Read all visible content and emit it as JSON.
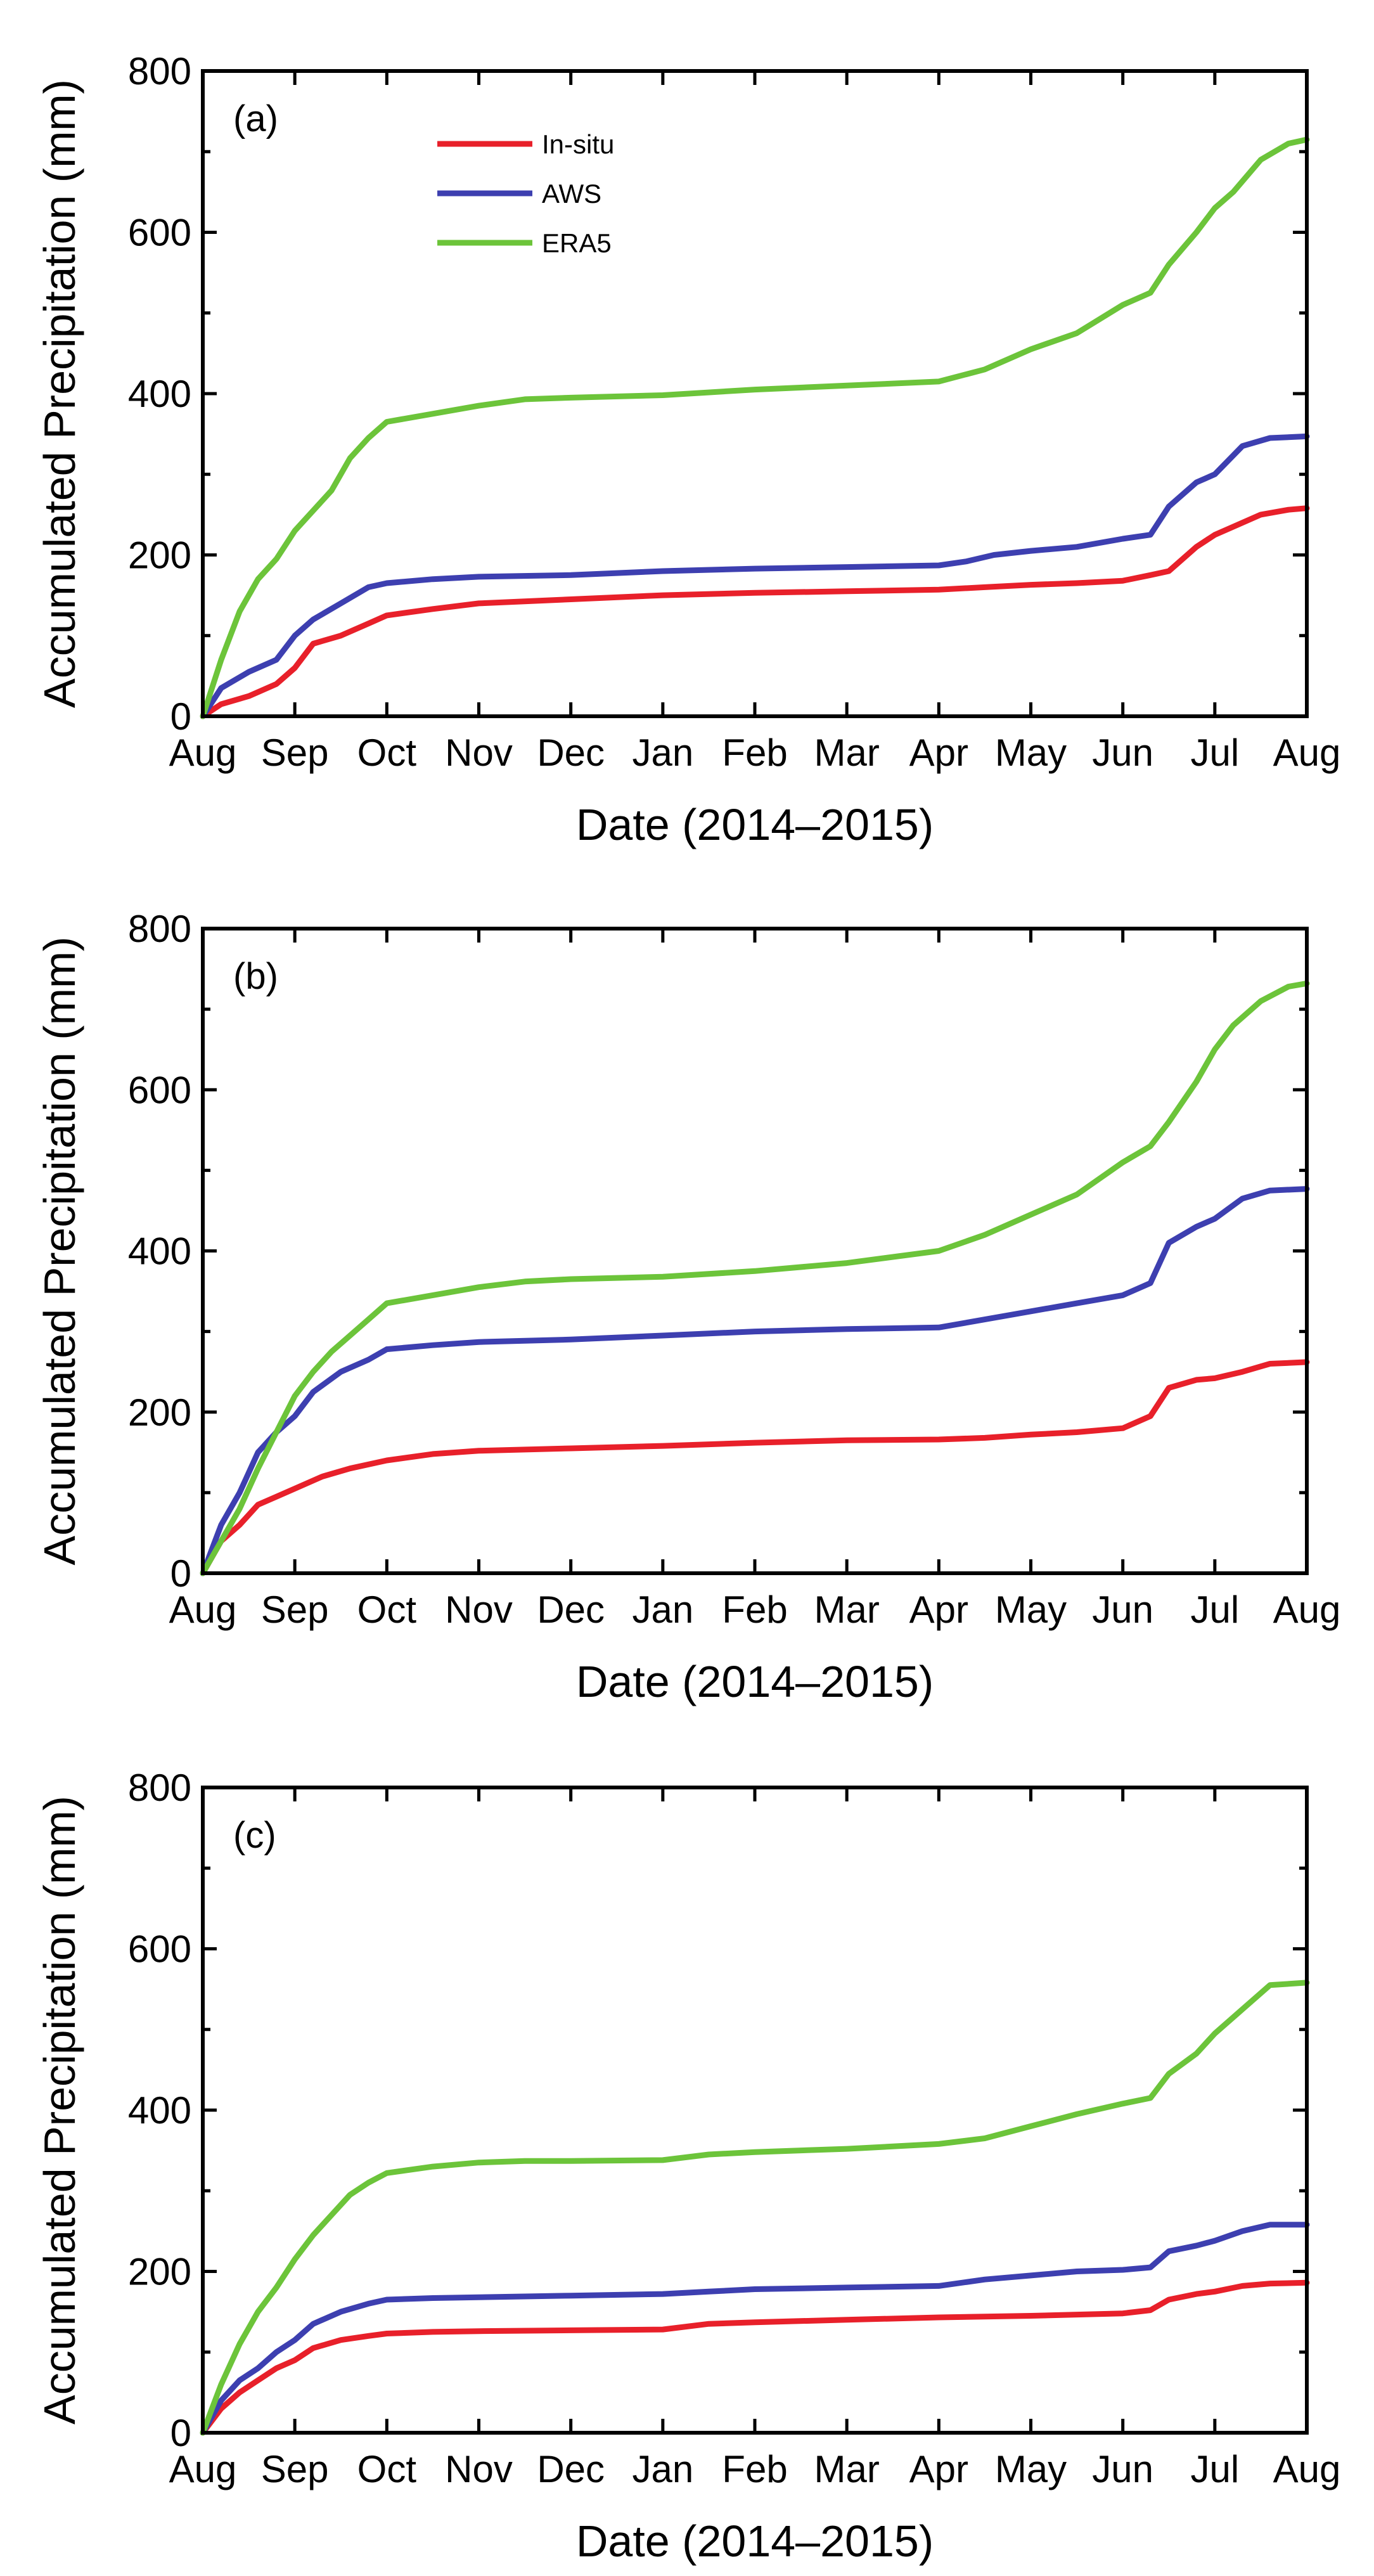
{
  "colors": {
    "in_situ": "#e8202a",
    "aws": "#3d3fb0",
    "era5": "#6cc43a"
  },
  "legend": [
    {
      "key": "in_situ",
      "label": "In-situ"
    },
    {
      "key": "aws",
      "label": "AWS"
    },
    {
      "key": "era5",
      "label": "ERA5"
    }
  ],
  "chart_data": [
    {
      "type": "line",
      "panel": "(a)",
      "xlabel": "Date (2014–2015)",
      "ylabel": "Accumulated Precipitation (mm)",
      "ylim": [
        0,
        800
      ],
      "yticks": [
        "0",
        "200",
        "400",
        "600",
        "800"
      ],
      "xticks": [
        "Aug",
        "Sep",
        "Oct",
        "Nov",
        "Dec",
        "Jan",
        "Feb",
        "Mar",
        "Apr",
        "May",
        "Jun",
        "Jul",
        "Aug"
      ],
      "xlim": [
        0,
        12
      ],
      "series": [
        {
          "key": "in_situ",
          "name": "In-situ",
          "x": [
            0,
            0.2,
            0.5,
            0.8,
            1.0,
            1.2,
            1.5,
            1.8,
            2.0,
            2.5,
            3.0,
            4.0,
            5.0,
            6.0,
            7.0,
            8.0,
            8.5,
            9.0,
            9.5,
            10.0,
            10.3,
            10.5,
            10.8,
            11.0,
            11.2,
            11.5,
            11.8,
            12.0
          ],
          "values": [
            0,
            15,
            25,
            40,
            60,
            90,
            100,
            115,
            125,
            133,
            140,
            145,
            150,
            153,
            155,
            157,
            160,
            163,
            165,
            168,
            175,
            180,
            210,
            225,
            235,
            250,
            256,
            258
          ]
        },
        {
          "key": "aws",
          "name": "AWS",
          "x": [
            0,
            0.2,
            0.5,
            0.8,
            1.0,
            1.2,
            1.5,
            1.8,
            2.0,
            2.5,
            3.0,
            4.0,
            5.0,
            6.0,
            7.0,
            8.0,
            8.3,
            8.6,
            9.0,
            9.5,
            10.0,
            10.3,
            10.5,
            10.8,
            11.0,
            11.3,
            11.6,
            12.0
          ],
          "values": [
            0,
            35,
            55,
            70,
            100,
            120,
            140,
            160,
            165,
            170,
            173,
            175,
            180,
            183,
            185,
            187,
            192,
            200,
            205,
            210,
            220,
            225,
            260,
            290,
            300,
            335,
            345,
            347
          ]
        },
        {
          "key": "era5",
          "name": "ERA5",
          "x": [
            0,
            0.2,
            0.4,
            0.6,
            0.8,
            1.0,
            1.2,
            1.4,
            1.6,
            1.8,
            2.0,
            2.5,
            3.0,
            3.5,
            4.0,
            5.0,
            6.0,
            7.0,
            8.0,
            8.5,
            9.0,
            9.5,
            10.0,
            10.3,
            10.5,
            10.8,
            11.0,
            11.2,
            11.5,
            11.8,
            12.0
          ],
          "values": [
            0,
            70,
            130,
            170,
            195,
            230,
            255,
            280,
            320,
            345,
            365,
            375,
            385,
            393,
            395,
            398,
            405,
            410,
            415,
            430,
            455,
            475,
            510,
            525,
            560,
            600,
            630,
            650,
            690,
            710,
            715
          ]
        }
      ]
    },
    {
      "type": "line",
      "panel": "(b)",
      "xlabel": "Date (2014–2015)",
      "ylabel": "Accumulated Precipitation (mm)",
      "ylim": [
        0,
        800
      ],
      "yticks": [
        "0",
        "200",
        "400",
        "600",
        "800"
      ],
      "xticks": [
        "Aug",
        "Sep",
        "Oct",
        "Nov",
        "Dec",
        "Jan",
        "Feb",
        "Mar",
        "Apr",
        "May",
        "Jun",
        "Jul",
        "Aug"
      ],
      "xlim": [
        0,
        12
      ],
      "series": [
        {
          "key": "in_situ",
          "name": "In-situ",
          "x": [
            0,
            0.2,
            0.4,
            0.6,
            0.8,
            1.0,
            1.3,
            1.6,
            2.0,
            2.5,
            3.0,
            4.0,
            5.0,
            6.0,
            7.0,
            8.0,
            8.5,
            9.0,
            9.5,
            10.0,
            10.3,
            10.5,
            10.8,
            11.0,
            11.3,
            11.6,
            12.0
          ],
          "values": [
            0,
            40,
            60,
            85,
            95,
            105,
            120,
            130,
            140,
            148,
            152,
            155,
            158,
            162,
            165,
            166,
            168,
            172,
            175,
            180,
            195,
            230,
            240,
            242,
            250,
            260,
            262
          ]
        },
        {
          "key": "aws",
          "name": "AWS",
          "x": [
            0,
            0.2,
            0.4,
            0.6,
            0.8,
            1.0,
            1.2,
            1.5,
            1.8,
            2.0,
            2.5,
            3.0,
            4.0,
            5.0,
            6.0,
            7.0,
            8.0,
            8.5,
            9.0,
            9.5,
            10.0,
            10.3,
            10.5,
            10.8,
            11.0,
            11.3,
            11.6,
            12.0
          ],
          "values": [
            0,
            60,
            100,
            150,
            175,
            195,
            225,
            250,
            265,
            278,
            283,
            287,
            290,
            295,
            300,
            303,
            305,
            315,
            325,
            335,
            345,
            360,
            410,
            430,
            440,
            465,
            475,
            477
          ]
        },
        {
          "key": "era5",
          "name": "ERA5",
          "x": [
            0,
            0.2,
            0.4,
            0.6,
            0.8,
            1.0,
            1.2,
            1.4,
            1.6,
            1.8,
            2.0,
            2.5,
            3.0,
            3.5,
            4.0,
            5.0,
            6.0,
            7.0,
            8.0,
            8.5,
            9.0,
            9.5,
            10.0,
            10.3,
            10.5,
            10.8,
            11.0,
            11.2,
            11.5,
            11.8,
            12.0
          ],
          "values": [
            0,
            40,
            80,
            130,
            175,
            220,
            250,
            275,
            295,
            315,
            335,
            345,
            355,
            362,
            365,
            368,
            375,
            385,
            400,
            420,
            445,
            470,
            510,
            530,
            560,
            610,
            650,
            680,
            710,
            728,
            732
          ]
        }
      ]
    },
    {
      "type": "line",
      "panel": "(c)",
      "xlabel": "Date (2014–2015)",
      "ylabel": "Accumulated Precipitation (mm)",
      "ylim": [
        0,
        800
      ],
      "yticks": [
        "0",
        "200",
        "400",
        "600",
        "800"
      ],
      "xticks": [
        "Aug",
        "Sep",
        "Oct",
        "Nov",
        "Dec",
        "Jan",
        "Feb",
        "Mar",
        "Apr",
        "May",
        "Jun",
        "Jul",
        "Aug"
      ],
      "xlim": [
        0,
        12
      ],
      "series": [
        {
          "key": "in_situ",
          "name": "In-situ",
          "x": [
            0,
            0.2,
            0.4,
            0.6,
            0.8,
            1.0,
            1.2,
            1.5,
            1.8,
            2.0,
            2.5,
            3.0,
            4.0,
            5.0,
            5.5,
            6.0,
            7.0,
            8.0,
            9.0,
            10.0,
            10.3,
            10.5,
            10.8,
            11.0,
            11.3,
            11.6,
            12.0
          ],
          "values": [
            0,
            30,
            50,
            65,
            80,
            90,
            105,
            115,
            120,
            123,
            125,
            126,
            127,
            128,
            135,
            137,
            140,
            143,
            145,
            148,
            152,
            165,
            172,
            175,
            182,
            185,
            186
          ]
        },
        {
          "key": "aws",
          "name": "AWS",
          "x": [
            0,
            0.2,
            0.4,
            0.6,
            0.8,
            1.0,
            1.2,
            1.5,
            1.8,
            2.0,
            2.5,
            3.0,
            4.0,
            5.0,
            5.5,
            6.0,
            7.0,
            8.0,
            8.5,
            9.0,
            9.5,
            10.0,
            10.3,
            10.5,
            10.8,
            11.0,
            11.3,
            11.6,
            12.0
          ],
          "values": [
            0,
            40,
            65,
            80,
            100,
            115,
            135,
            150,
            160,
            165,
            167,
            168,
            170,
            172,
            175,
            178,
            180,
            182,
            190,
            195,
            200,
            202,
            205,
            225,
            232,
            238,
            250,
            258,
            258
          ]
        },
        {
          "key": "era5",
          "name": "ERA5",
          "x": [
            0,
            0.2,
            0.4,
            0.6,
            0.8,
            1.0,
            1.2,
            1.4,
            1.6,
            1.8,
            2.0,
            2.5,
            3.0,
            3.5,
            4.0,
            5.0,
            5.5,
            6.0,
            7.0,
            8.0,
            8.5,
            9.0,
            9.5,
            10.0,
            10.3,
            10.5,
            10.8,
            11.0,
            11.3,
            11.6,
            12.0
          ],
          "values": [
            0,
            60,
            110,
            150,
            180,
            215,
            245,
            270,
            295,
            310,
            322,
            330,
            335,
            337,
            337,
            338,
            345,
            348,
            352,
            358,
            365,
            380,
            395,
            408,
            415,
            445,
            470,
            495,
            525,
            555,
            558
          ]
        }
      ]
    }
  ]
}
